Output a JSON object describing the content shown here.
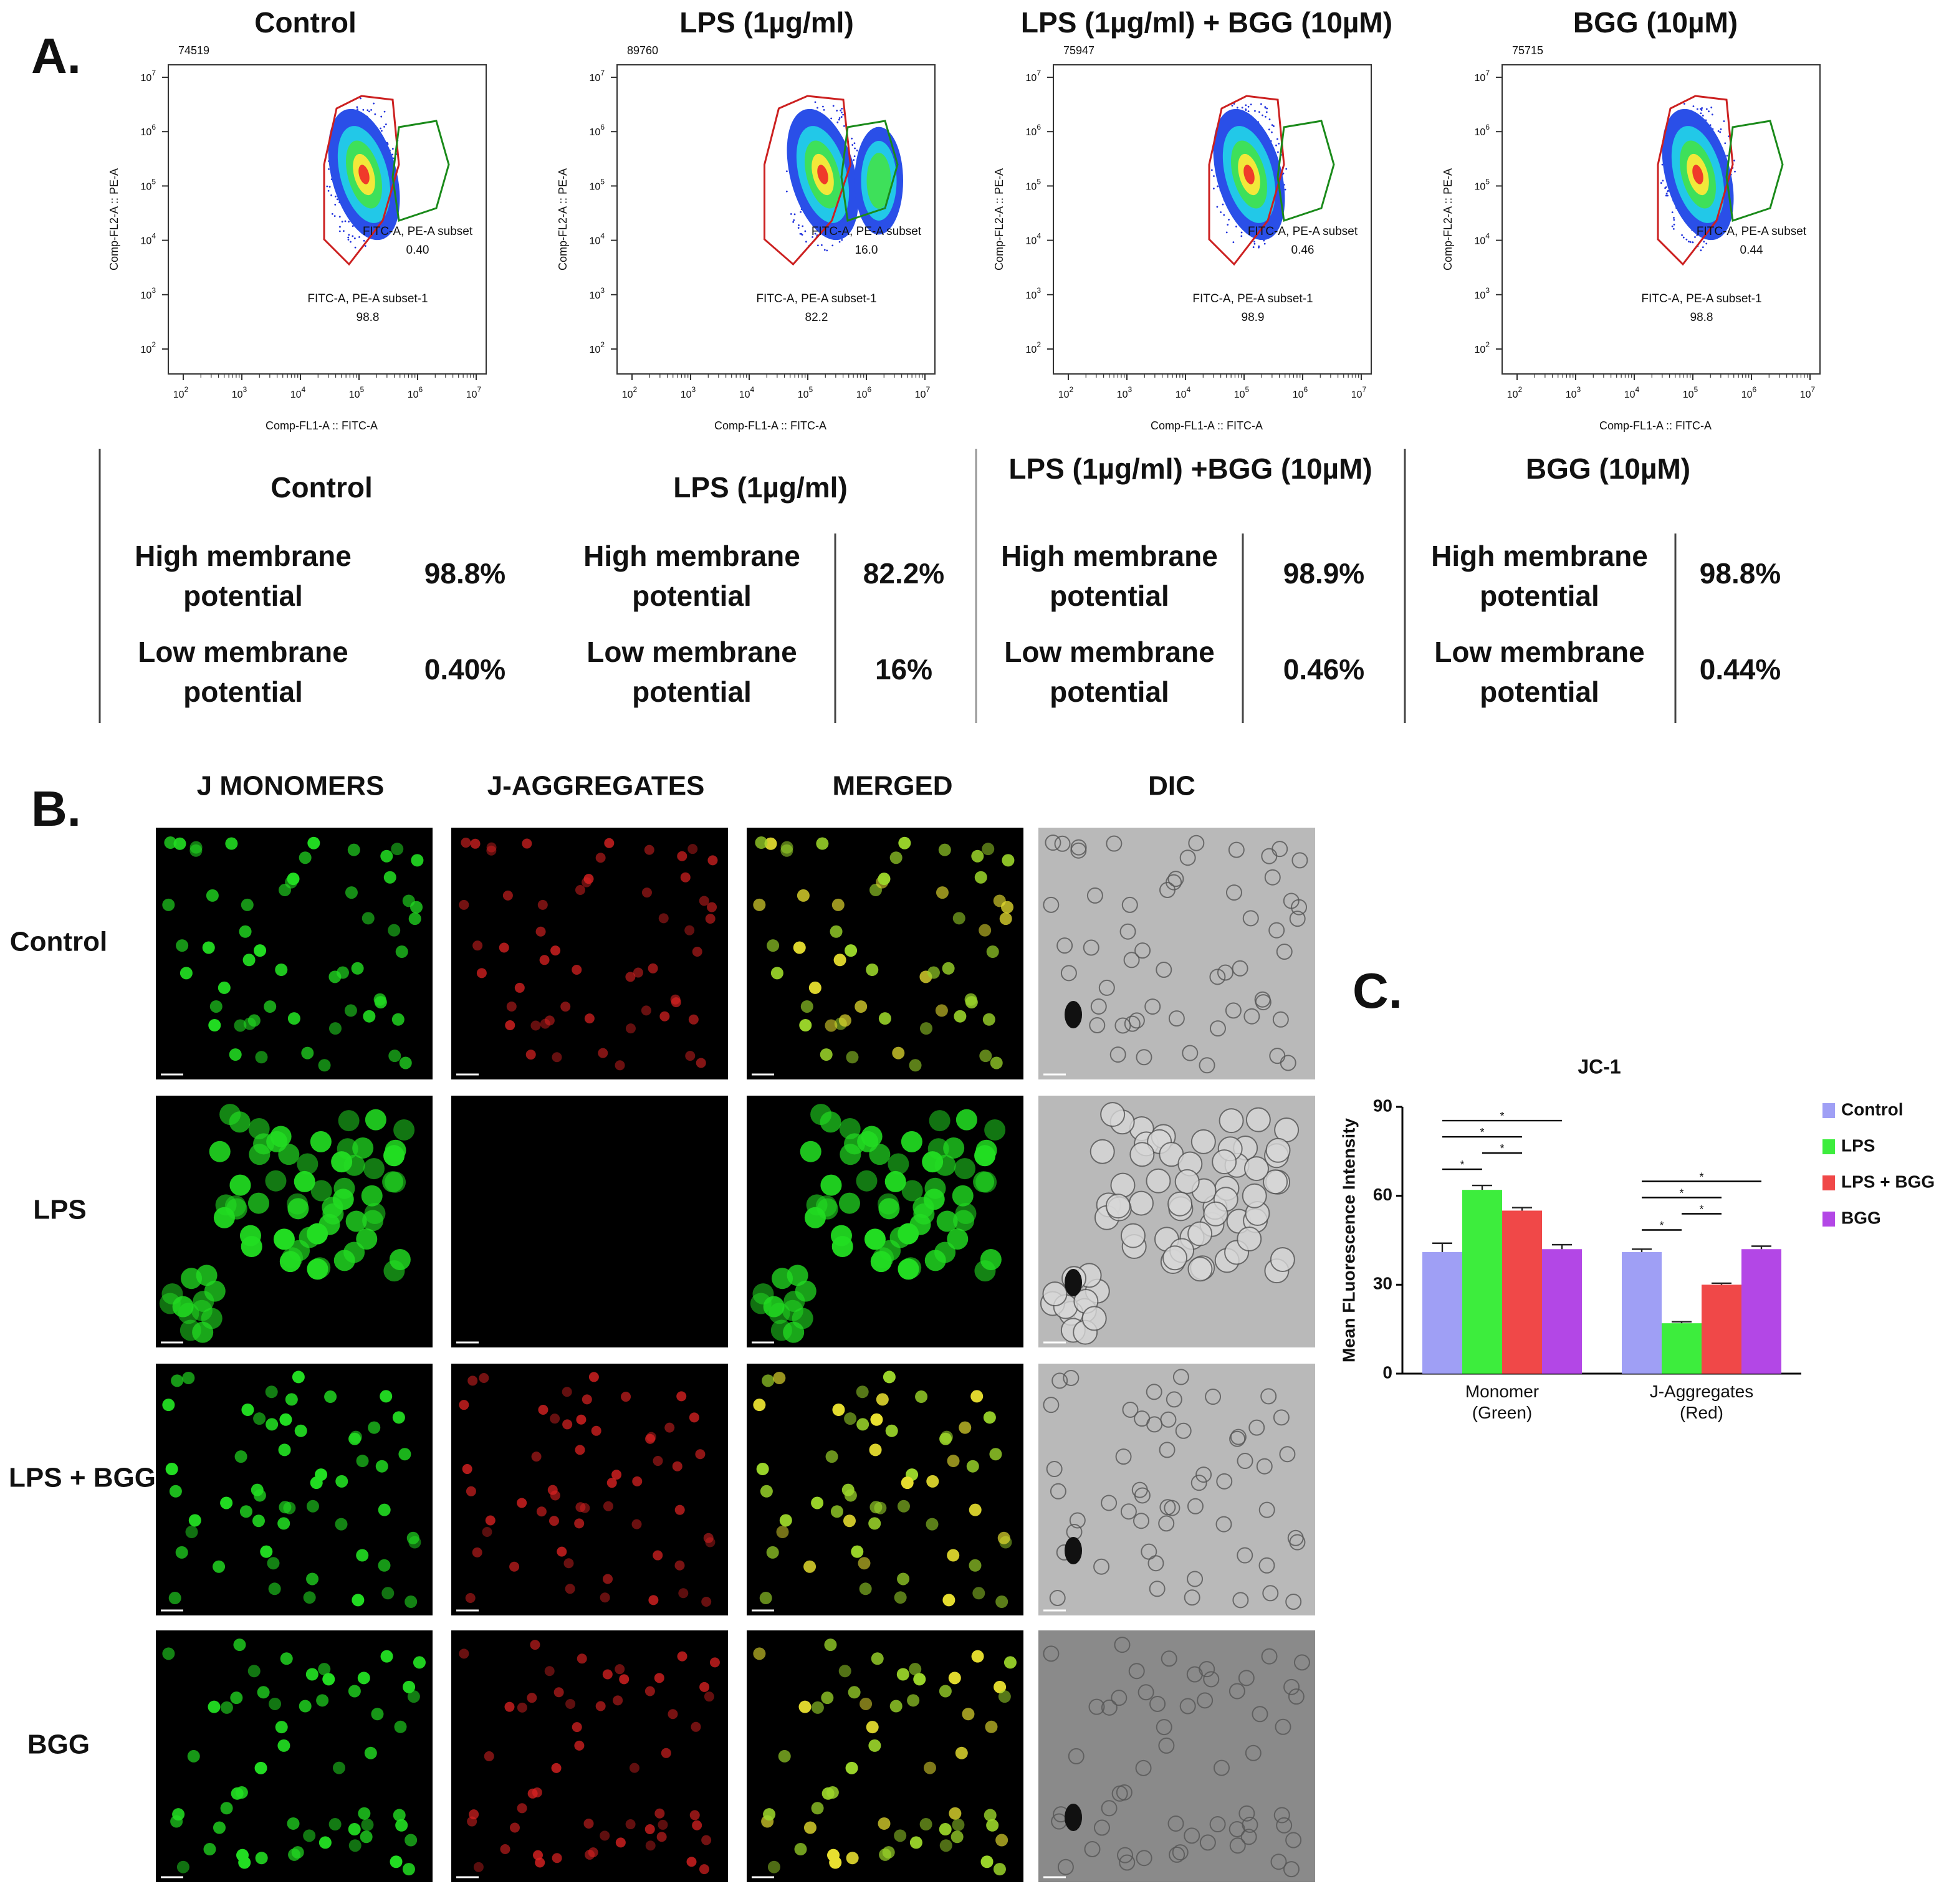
{
  "panel_a": {
    "label": "A.",
    "tick_base": "10",
    "tick_exponents": [
      "2",
      "3",
      "4",
      "5",
      "6",
      "7"
    ],
    "plots": [
      {
        "title": "Control",
        "event_count": "74519",
        "x_label": "Comp-FL1-A :: FITC-A",
        "y_label": "Comp-FL2-A :: PE-A",
        "low_gate": "FITC-A, PE-A subset",
        "low_value": "0.40",
        "high_gate": "FITC-A, PE-A subset-1",
        "high_value": "98.8"
      },
      {
        "title": "LPS (1µg/ml)",
        "event_count": "89760",
        "x_label": "Comp-FL1-A :: FITC-A",
        "y_label": "Comp-FL2-A :: PE-A",
        "low_gate": "FITC-A, PE-A subset",
        "low_value": "16.0",
        "high_gate": "FITC-A, PE-A subset-1",
        "high_value": "82.2"
      },
      {
        "title": "LPS (1µg/ml) + BGG (10µM)",
        "event_count": "75947",
        "x_label": "Comp-FL1-A :: FITC-A",
        "y_label": "Comp-FL2-A :: PE-A",
        "low_gate": "FITC-A, PE-A subset",
        "low_value": "0.46",
        "high_gate": "FITC-A, PE-A subset-1",
        "high_value": "98.9"
      },
      {
        "title": "BGG (10µM)",
        "event_count": "75715",
        "x_label": "Comp-FL1-A :: FITC-A",
        "y_label": "Comp-FL2-A :: PE-A",
        "low_gate": "FITC-A, PE-A subset",
        "low_value": "0.44",
        "high_gate": "FITC-A, PE-A subset-1",
        "high_value": "98.8"
      }
    ],
    "table": [
      {
        "title": "Control",
        "rows": [
          [
            "High membrane potential",
            "98.8%"
          ],
          [
            "Low membrane potential",
            "0.40%"
          ]
        ]
      },
      {
        "title": "LPS (1µg/ml)",
        "rows": [
          [
            "High membrane potential",
            "82.2%"
          ],
          [
            "Low membrane potential",
            "16%"
          ]
        ]
      },
      {
        "title": "LPS (1µg/ml) +BGG (10µM)",
        "rows": [
          [
            "High membrane potential",
            "98.9%"
          ],
          [
            "Low membrane potential",
            "0.46%"
          ]
        ]
      },
      {
        "title": "BGG (10µM)",
        "rows": [
          [
            "High membrane potential",
            "98.8%"
          ],
          [
            "Low membrane potential",
            "0.44%"
          ]
        ]
      }
    ]
  },
  "panel_b": {
    "label": "B.",
    "columns": [
      "J MONOMERS",
      "J-AGGREGATES",
      "MERGED",
      "DIC"
    ],
    "rows": [
      "Control",
      "LPS",
      "LPS + BGG",
      "BGG"
    ]
  },
  "chart_data": {
    "type": "bar",
    "label": "C.",
    "title": "JC-1",
    "y_label": "Mean FLuorescence Intensity",
    "categories": [
      "Monomer (Green)",
      "J-Aggregates (Red)"
    ],
    "series": [
      {
        "name": "Control",
        "color": "#9f9ff5",
        "values": [
          41,
          41
        ],
        "errors": [
          3,
          1
        ]
      },
      {
        "name": "LPS",
        "color": "#3ded3d",
        "values": [
          62,
          17
        ],
        "errors": [
          1.5,
          0.5
        ]
      },
      {
        "name": "LPS + BGG",
        "color": "#f04848",
        "values": [
          55,
          30
        ],
        "errors": [
          1,
          0.5
        ]
      },
      {
        "name": "BGG",
        "color": "#b347e6",
        "values": [
          42,
          42
        ],
        "errors": [
          1.5,
          1
        ]
      }
    ],
    "ylim": [
      0,
      90
    ],
    "yticks": [
      0,
      30,
      60,
      90
    ],
    "legend": "right",
    "significance": [
      {
        "category": 0,
        "from": 0,
        "to": 1,
        "label": "*"
      },
      {
        "category": 0,
        "from": 1,
        "to": 2,
        "label": "*"
      },
      {
        "category": 0,
        "from": 0,
        "to": 2,
        "label": "*"
      },
      {
        "category": 0,
        "from": 0,
        "to": 3,
        "label": "*"
      },
      {
        "category": 1,
        "from": 0,
        "to": 1,
        "label": "*"
      },
      {
        "category": 1,
        "from": 1,
        "to": 2,
        "label": "*"
      },
      {
        "category": 1,
        "from": 0,
        "to": 2,
        "label": "*"
      },
      {
        "category": 1,
        "from": 0,
        "to": 3,
        "label": "*"
      }
    ]
  }
}
